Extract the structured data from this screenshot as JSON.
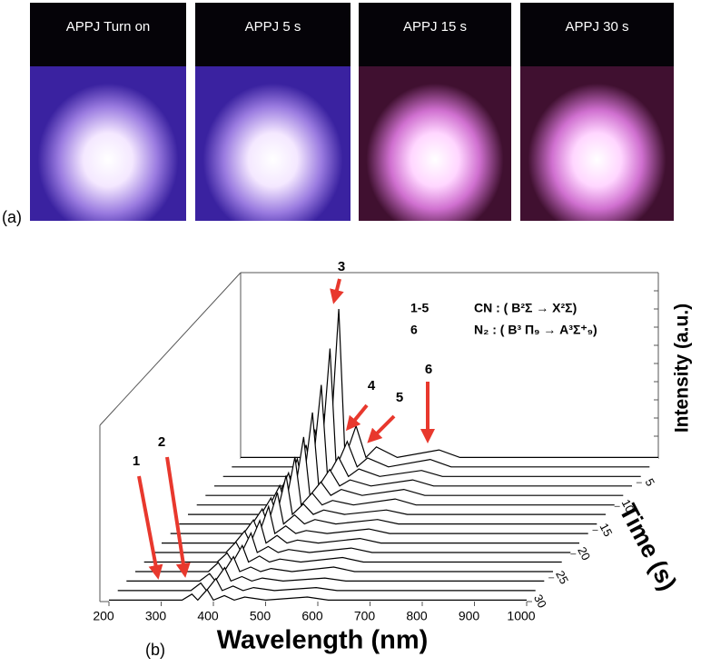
{
  "photos": {
    "captions": [
      "APPJ Turn on",
      "APPJ 5 s",
      "APPJ 15 s",
      "APPJ 30 s"
    ],
    "panel_label": "(a)"
  },
  "chart_data": {
    "type": "waterfall",
    "panel_label": "(b)",
    "x_label": "Wavelength (nm)",
    "y_label": "Intensity (a.u.)",
    "z_label": "Time (s)",
    "xlim": [
      200,
      1000
    ],
    "xticks": [
      200,
      300,
      400,
      500,
      600,
      700,
      800,
      900,
      1000
    ],
    "ylim": [
      0,
      100
    ],
    "zlim": [
      0,
      30
    ],
    "zticks": [
      5,
      10,
      15,
      20,
      25,
      30
    ],
    "color": "#000000",
    "x": [
      200,
      340,
      359,
      370,
      388,
      400,
      421,
      440,
      460,
      500,
      580,
      620,
      700,
      800,
      900,
      1000
    ],
    "z": [
      0,
      2,
      4,
      6,
      8,
      10,
      12,
      14,
      16,
      18,
      20,
      22,
      24,
      26,
      28,
      30
    ],
    "series": [
      {
        "values": [
          1,
          1,
          30,
          1,
          100,
          1,
          22,
          1,
          8,
          1,
          6,
          1,
          1,
          1,
          1,
          1
        ]
      },
      {
        "values": [
          1,
          1,
          26,
          1,
          80,
          1,
          18,
          1,
          7,
          1,
          6,
          1,
          1,
          1,
          1,
          1
        ]
      },
      {
        "values": [
          1,
          1,
          22,
          1,
          62,
          1,
          14,
          1,
          6,
          1,
          5,
          1,
          1,
          1,
          1,
          1
        ]
      },
      {
        "values": [
          1,
          1,
          19,
          1,
          50,
          1,
          12,
          1,
          5,
          1,
          5,
          1,
          1,
          1,
          1,
          1
        ]
      },
      {
        "values": [
          1,
          1,
          16,
          1,
          40,
          1,
          10,
          1,
          5,
          1,
          5,
          1,
          1,
          1,
          1,
          1
        ]
      },
      {
        "values": [
          1,
          1,
          14,
          1,
          33,
          1,
          9,
          1,
          4,
          1,
          5,
          1,
          1,
          1,
          1,
          1
        ]
      },
      {
        "values": [
          1,
          1,
          12,
          1,
          27,
          1,
          8,
          1,
          4,
          1,
          4,
          1,
          1,
          1,
          1,
          1
        ]
      },
      {
        "values": [
          1,
          1,
          11,
          1,
          22,
          1,
          7,
          1,
          4,
          1,
          4,
          1,
          1,
          1,
          1,
          1
        ]
      },
      {
        "values": [
          1,
          1,
          10,
          1,
          19,
          1,
          6,
          1,
          3,
          1,
          4,
          1,
          1,
          1,
          1,
          1
        ]
      },
      {
        "values": [
          1,
          1,
          9,
          1,
          16,
          1,
          6,
          1,
          3,
          1,
          4,
          1,
          1,
          1,
          1,
          1
        ]
      },
      {
        "values": [
          1,
          1,
          8,
          1,
          14,
          1,
          5,
          1,
          3,
          1,
          4,
          1,
          1,
          1,
          1,
          1
        ]
      },
      {
        "values": [
          1,
          1,
          7,
          1,
          12,
          1,
          5,
          1,
          3,
          1,
          4,
          1,
          1,
          1,
          1,
          1
        ]
      },
      {
        "values": [
          1,
          1,
          7,
          1,
          11,
          1,
          4,
          1,
          3,
          1,
          4,
          1,
          1,
          1,
          1,
          1
        ]
      },
      {
        "values": [
          1,
          1,
          6,
          1,
          10,
          1,
          4,
          1,
          3,
          1,
          3,
          1,
          1,
          1,
          1,
          1
        ]
      },
      {
        "values": [
          1,
          1,
          6,
          1,
          9,
          1,
          4,
          1,
          3,
          1,
          3,
          1,
          1,
          1,
          1,
          1
        ]
      },
      {
        "values": [
          1,
          1,
          5,
          1,
          8,
          1,
          4,
          1,
          3,
          1,
          3,
          1,
          1,
          1,
          1,
          1
        ]
      }
    ],
    "annotations": [
      "1",
      "2",
      "3",
      "4",
      "5",
      "6"
    ],
    "legend": [
      {
        "key": "1-5",
        "text": "CN : ( B²Σ → X²Σ)"
      },
      {
        "key": "6",
        "text": "N₂ : ( B³ Π₉ → A³Σ⁺₉)"
      }
    ]
  }
}
